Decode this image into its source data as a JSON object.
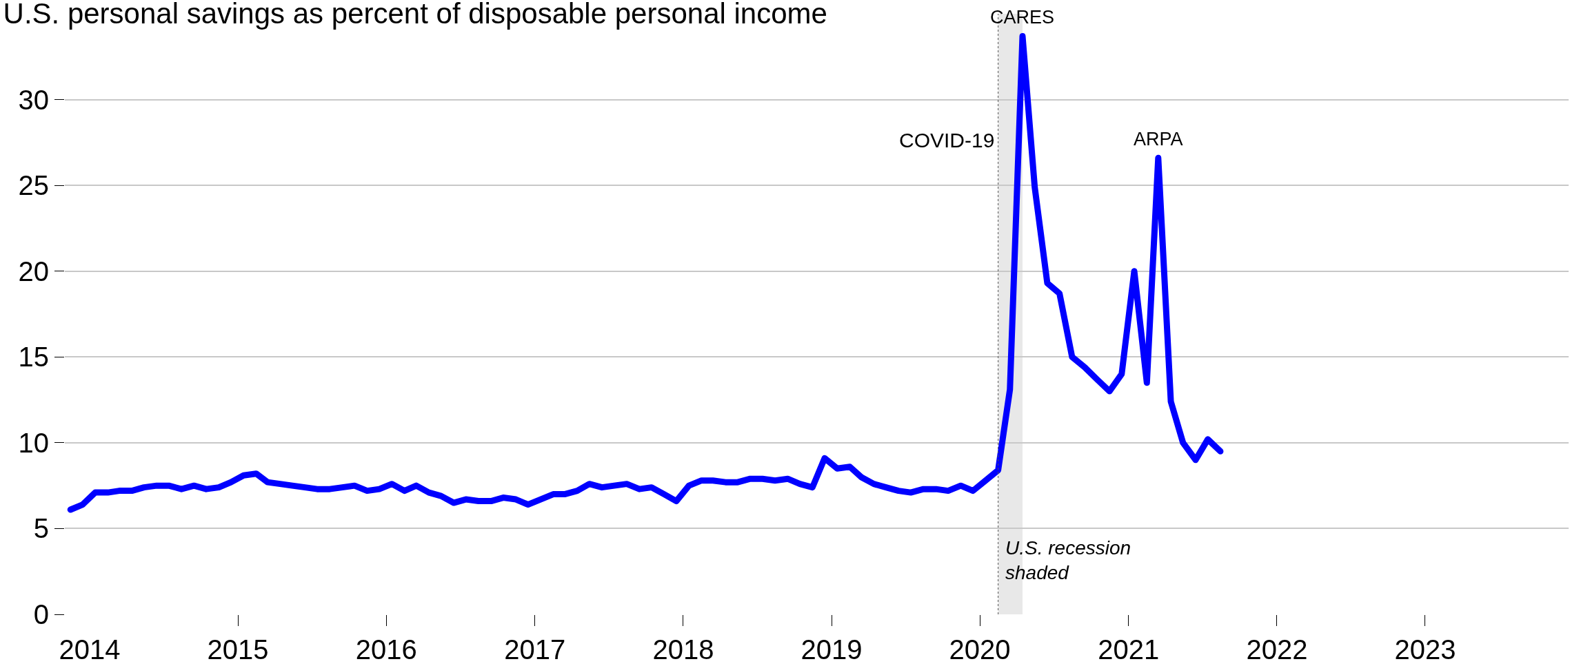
{
  "chart_data": {
    "type": "line",
    "title": "U.S. personal savings as percent of disposable personal income",
    "x": [
      "2013-11-15",
      "2013-12-15",
      "2014-01-15",
      "2014-02-15",
      "2014-03-15",
      "2014-04-15",
      "2014-05-15",
      "2014-06-15",
      "2014-07-15",
      "2014-08-15",
      "2014-09-15",
      "2014-10-15",
      "2014-11-15",
      "2014-12-15",
      "2015-01-15",
      "2015-02-15",
      "2015-03-15",
      "2015-04-15",
      "2015-05-15",
      "2015-06-15",
      "2015-07-15",
      "2015-08-15",
      "2015-09-15",
      "2015-10-15",
      "2015-11-15",
      "2015-12-15",
      "2016-01-15",
      "2016-02-15",
      "2016-03-15",
      "2016-04-15",
      "2016-05-15",
      "2016-06-15",
      "2016-07-15",
      "2016-08-15",
      "2016-09-15",
      "2016-10-15",
      "2016-11-15",
      "2016-12-15",
      "2017-01-15",
      "2017-02-15",
      "2017-03-15",
      "2017-04-15",
      "2017-05-15",
      "2017-06-15",
      "2017-07-15",
      "2017-08-15",
      "2017-09-15",
      "2017-10-15",
      "2017-11-15",
      "2017-12-15",
      "2018-01-15",
      "2018-02-15",
      "2018-03-15",
      "2018-04-15",
      "2018-05-15",
      "2018-06-15",
      "2018-07-15",
      "2018-08-15",
      "2018-09-15",
      "2018-10-15",
      "2018-11-15",
      "2018-12-15",
      "2019-01-15",
      "2019-02-15",
      "2019-03-15",
      "2019-04-15",
      "2019-05-15",
      "2019-06-15",
      "2019-07-15",
      "2019-08-15",
      "2019-09-15",
      "2019-10-15",
      "2019-11-15",
      "2019-12-15",
      "2020-01-15",
      "2020-02-15",
      "2020-03-15",
      "2020-04-15",
      "2020-05-15",
      "2020-06-15",
      "2020-07-15",
      "2020-08-15",
      "2020-09-15",
      "2020-10-15",
      "2020-11-15",
      "2020-12-15",
      "2021-01-15",
      "2021-02-15",
      "2021-03-15",
      "2021-04-15",
      "2021-05-15",
      "2021-06-15",
      "2021-07-15",
      "2021-08-15"
    ],
    "series": [
      {
        "color": "#0000ff",
        "values": [
          6.1,
          6.4,
          7.1,
          7.1,
          7.2,
          7.2,
          7.4,
          7.5,
          7.5,
          7.3,
          7.5,
          7.3,
          7.4,
          7.7,
          8.1,
          8.2,
          7.7,
          7.6,
          7.5,
          7.4,
          7.3,
          7.3,
          7.4,
          7.5,
          7.2,
          7.3,
          7.6,
          7.2,
          7.5,
          7.1,
          6.9,
          6.5,
          6.7,
          6.6,
          6.6,
          6.8,
          6.7,
          6.4,
          6.7,
          7.0,
          7.0,
          7.2,
          7.6,
          7.4,
          7.5,
          7.6,
          7.3,
          7.4,
          7.0,
          6.6,
          7.5,
          7.8,
          7.8,
          7.7,
          7.7,
          7.9,
          7.9,
          7.8,
          7.9,
          7.6,
          7.4,
          9.1,
          8.5,
          8.6,
          8.0,
          7.6,
          7.4,
          7.2,
          7.1,
          7.3,
          7.3,
          7.2,
          7.5,
          7.2,
          7.8,
          8.4,
          13.1,
          33.7,
          24.9,
          19.3,
          18.7,
          15.0,
          14.4,
          13.7,
          13.0,
          14.0,
          20.0,
          13.5,
          26.6,
          12.4,
          10.0,
          9.0,
          10.2,
          9.5
        ]
      }
    ],
    "xlim": [
      "2013-11-01",
      "2023-12-20"
    ],
    "xticks": [
      "2014",
      "2015",
      "2016",
      "2017",
      "2018",
      "2019",
      "2020",
      "2021",
      "2022",
      "2023"
    ],
    "ylim": [
      0,
      35
    ],
    "yticks": [
      0,
      5,
      10,
      15,
      20,
      25,
      30
    ],
    "grid": "y",
    "marker": "none",
    "line_style": "solid",
    "ref_lines": [
      {
        "axis": "x",
        "value": "2020-02-15",
        "label": "COVID-19",
        "color": "#555555",
        "line_style": "dotted"
      }
    ],
    "bands": [
      {
        "axis": "x",
        "from": "2020-02-15",
        "to": "2020-04-15",
        "label": "U.S. recession shaded",
        "color": "#e8e8e8"
      }
    ],
    "annotations": [
      {
        "text": "CARES",
        "x": "2020-04-15",
        "y": 33.7
      },
      {
        "text": "ARPA",
        "x": "2021-03-15",
        "y": 26.6
      }
    ]
  }
}
